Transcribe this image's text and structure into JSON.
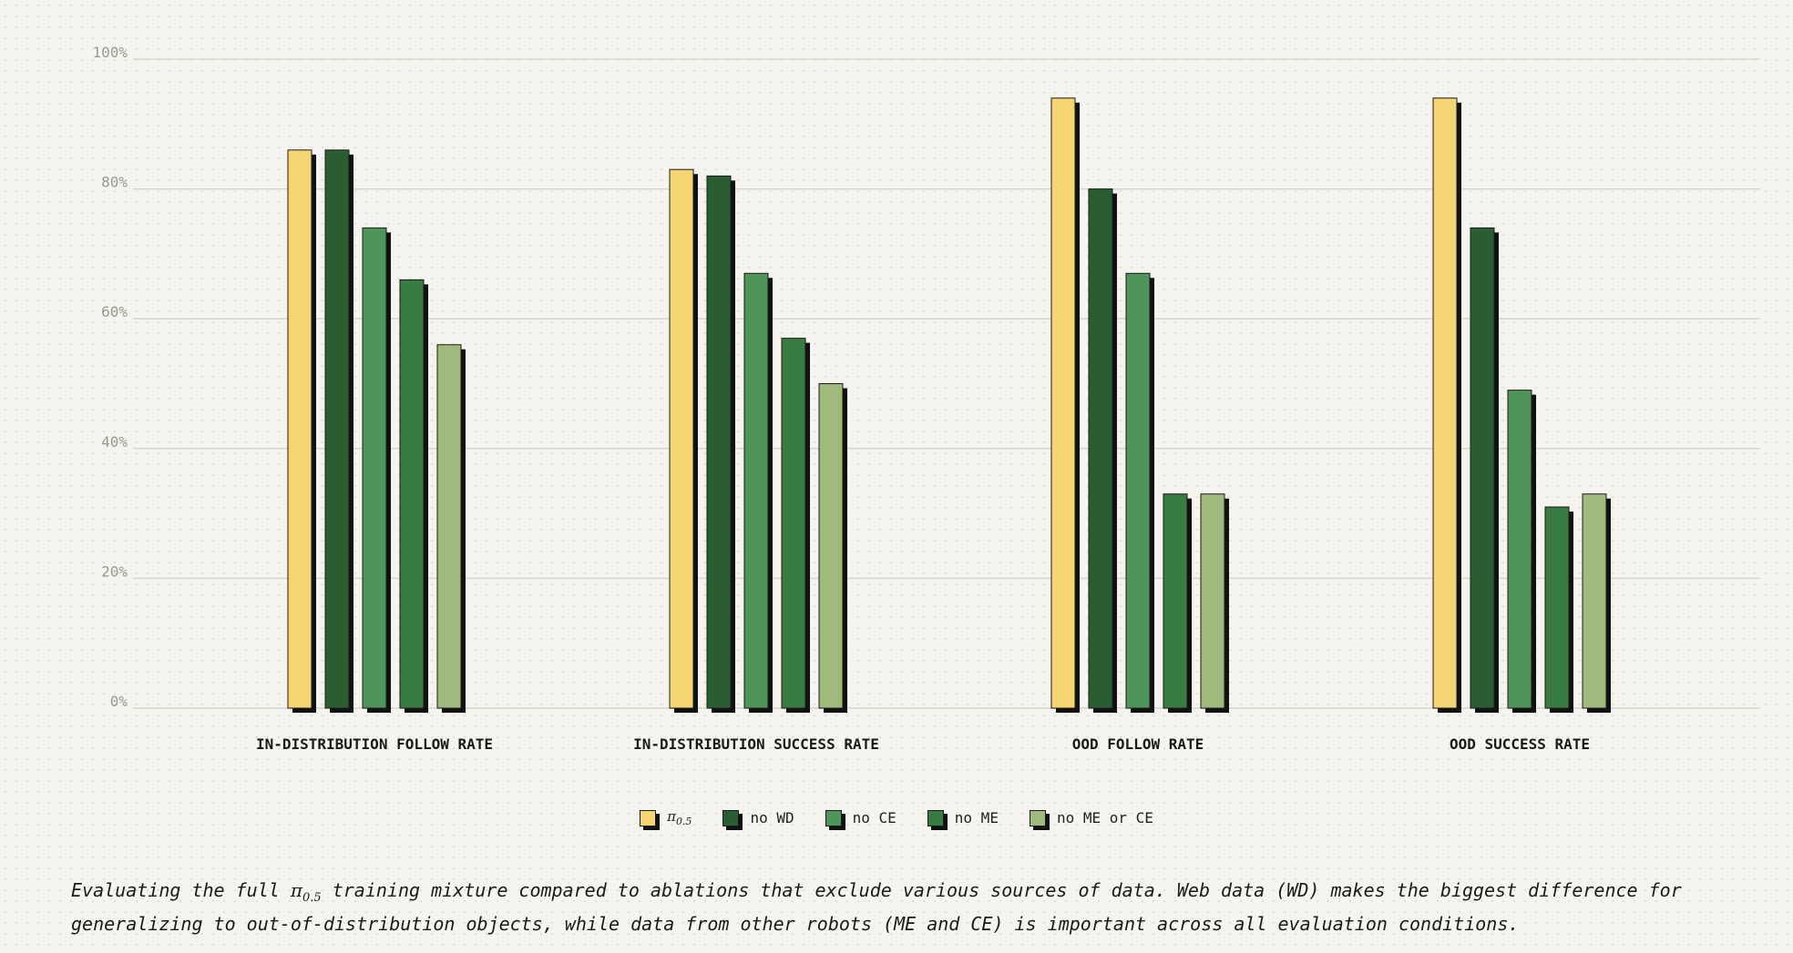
{
  "chart_data": {
    "type": "bar",
    "categories": [
      "IN-DISTRIBUTION FOLLOW RATE",
      "IN-DISTRIBUTION SUCCESS RATE",
      "OOD FOLLOW RATE",
      "OOD SUCCESS RATE"
    ],
    "series": [
      {
        "name": "π0.5",
        "color": "#f4d572",
        "values": [
          86,
          83,
          94,
          94
        ]
      },
      {
        "name": "no WD",
        "color": "#2a5d31",
        "values": [
          86,
          82,
          80,
          74
        ]
      },
      {
        "name": "no CE",
        "color": "#4f955a",
        "values": [
          74,
          67,
          67,
          49
        ]
      },
      {
        "name": "no ME",
        "color": "#397c42",
        "values": [
          66,
          57,
          33,
          31
        ]
      },
      {
        "name": "no ME or CE",
        "color": "#9fba7c",
        "values": [
          56,
          50,
          33,
          33
        ]
      }
    ],
    "ylim": [
      0,
      100
    ],
    "yticks": [
      "0%",
      "20%",
      "40%",
      "60%",
      "80%",
      "100%"
    ],
    "grid": true,
    "legend_position": "bottom-center"
  },
  "legend": {
    "pi_symbol": "π",
    "pi_subscript": "0.5",
    "items": [
      "no WD",
      "no CE",
      "no ME",
      "no ME or CE"
    ]
  },
  "caption": {
    "pi_symbol": "π",
    "pi_subscript": "0.5",
    "part1": "Evaluating the full ",
    "part2": " training mixture compared to ablations that exclude various sources of data. Web data (WD) makes the biggest difference for generalizing to out-of-distribution objects, while data from other robots (ME and CE) is important across all evaluation conditions."
  }
}
